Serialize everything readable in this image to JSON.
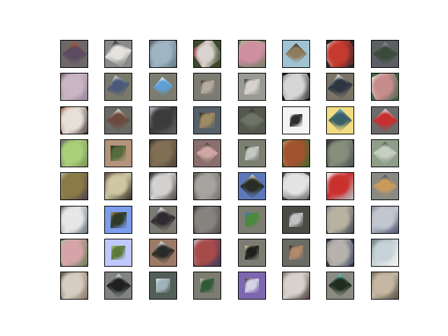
{
  "figure": {
    "rows": 8,
    "cols": 8,
    "tiles": [
      {
        "bg": "#6f6767",
        "fg": "#5a4a62",
        "accent": "#b3542a",
        "rot": 45,
        "scale": 0.62
      },
      {
        "bg": "#8a8a8a",
        "fg": "#e4e2dd",
        "accent": "#2a2f33",
        "rot": 30,
        "scale": 0.7
      },
      {
        "bg": "#5f6f7c",
        "fg": "#9fb5c4",
        "accent": "#3c4550",
        "rot": -20,
        "scale": 1.1
      },
      {
        "bg": "#3d4a2c",
        "fg": "#d9d3cf",
        "accent": "#8c3a3a",
        "rot": -35,
        "scale": 0.85
      },
      {
        "bg": "#6d7f63",
        "fg": "#d08ea1",
        "accent": "#9bc08b",
        "rot": 20,
        "scale": 1.05
      },
      {
        "bg": "#9fc3d5",
        "fg": "#8f7b5d",
        "accent": "#4b3e2e",
        "rot": 45,
        "scale": 0.55
      },
      {
        "bg": "#2e2a2a",
        "fg": "#c53a2e",
        "accent": "#e0e0e0",
        "rot": -30,
        "scale": 1.05
      },
      {
        "bg": "#5d5e64",
        "fg": "#394a3b",
        "accent": "#8f8a92",
        "rot": 45,
        "scale": 0.62
      },
      {
        "bg": "#8e7c92",
        "fg": "#c9b5c3",
        "accent": "#5a4860",
        "rot": -15,
        "scale": 1.15
      },
      {
        "bg": "#7a7a6b",
        "fg": "#4c5a78",
        "accent": "#c9c9d8",
        "rot": 30,
        "scale": 0.6
      },
      {
        "bg": "#7c7c72",
        "fg": "#5ea0d6",
        "accent": "#e0e6ec",
        "rot": 40,
        "scale": 0.5
      },
      {
        "bg": "#7c7c72",
        "fg": "#b6aaa2",
        "accent": "#3d3430",
        "rot": 0,
        "scale": 0.48
      },
      {
        "bg": "#9a9a95",
        "fg": "#d7d3cb",
        "accent": "#3a3a3a",
        "rot": 0,
        "scale": 0.55
      },
      {
        "bg": "#1c1e1c",
        "fg": "#d6d6d6",
        "accent": "#6f7573",
        "rot": -25,
        "scale": 1.1
      },
      {
        "bg": "#7a7466",
        "fg": "#2c3540",
        "accent": "#e6e2da",
        "rot": 35,
        "scale": 0.65
      },
      {
        "bg": "#44684c",
        "fg": "#c78d8d",
        "accent": "#e7e9e0",
        "rot": -25,
        "scale": 1.0
      },
      {
        "bg": "#3d2b28",
        "fg": "#e7e0d9",
        "accent": "#a7543d",
        "rot": -20,
        "scale": 1.1
      },
      {
        "bg": "#6a6a64",
        "fg": "#6a4a3c",
        "accent": "#e0d8cf",
        "rot": 45,
        "scale": 0.6
      },
      {
        "bg": "#5d6360",
        "fg": "#3c3a3c",
        "accent": "#b7bcc1",
        "rot": 0,
        "scale": 1.0
      },
      {
        "bg": "#56606a",
        "fg": "#9f8a62",
        "accent": "#2c2a28",
        "rot": 0,
        "scale": 0.55
      },
      {
        "bg": "#55584f",
        "fg": "#6d7567",
        "accent": "#3e3430",
        "rot": 45,
        "scale": 0.6
      },
      {
        "bg": "#f4f4f4",
        "fg": "#2d2d2d",
        "accent": "#ffffff",
        "rot": 0,
        "scale": 0.45
      },
      {
        "bg": "#f2dc80",
        "fg": "#3a5e66",
        "accent": "#77aeb6",
        "rot": 45,
        "scale": 0.6
      },
      {
        "bg": "#6b6b6b",
        "fg": "#c72e2e",
        "accent": "#d6d6d6",
        "rot": 45,
        "scale": 0.62
      },
      {
        "bg": "#778a55",
        "fg": "#a9cf79",
        "accent": "#5e4c6e",
        "rot": -20,
        "scale": 1.1
      },
      {
        "bg": "#b4937b",
        "fg": "#566c3c",
        "accent": "#2c3224",
        "rot": 0,
        "scale": 0.55
      },
      {
        "bg": "#4a3f32",
        "fg": "#806e55",
        "accent": "#2e2a24",
        "rot": -15,
        "scale": 1.1
      },
      {
        "bg": "#8a6f6d",
        "fg": "#cfa8a4",
        "accent": "#4a3a38",
        "rot": 45,
        "scale": 0.55
      },
      {
        "bg": "#7b8073",
        "fg": "#c4c8c1",
        "accent": "#2e2f2c",
        "rot": 0,
        "scale": 0.5
      },
      {
        "bg": "#3e6a2e",
        "fg": "#a0532e",
        "accent": "#d3a06b",
        "rot": -25,
        "scale": 1.1
      },
      {
        "bg": "#445257",
        "fg": "#868d7b",
        "accent": "#1f2624",
        "rot": -15,
        "scale": 1.05
      },
      {
        "bg": "#8e9e88",
        "fg": "#c6cfc4",
        "accent": "#556055",
        "rot": 45,
        "scale": 0.6
      },
      {
        "bg": "#4a3d4e",
        "fg": "#8a7a48",
        "accent": "#bfb9b0",
        "rot": -10,
        "scale": 1.15
      },
      {
        "bg": "#2f2a22",
        "fg": "#cfc7a3",
        "accent": "#5c5238",
        "rot": 0,
        "scale": 1.0
      },
      {
        "bg": "#3c3a38",
        "fg": "#d4d2d0",
        "accent": "#1e1c1b",
        "rot": -10,
        "scale": 1.05
      },
      {
        "bg": "#6e6863",
        "fg": "#a7a39e",
        "accent": "#2e2a28",
        "rot": -30,
        "scale": 1.1
      },
      {
        "bg": "#5c78b8",
        "fg": "#2a2b24",
        "accent": "#d6d0c2",
        "rot": 45,
        "scale": 0.62
      },
      {
        "bg": "#545454",
        "fg": "#e4e4e4",
        "accent": "#9a9a9a",
        "rot": 30,
        "scale": 1.1
      },
      {
        "bg": "#b5c6cf",
        "fg": "#c9302e",
        "accent": "#ffffff",
        "rot": 0,
        "scale": 1.0
      },
      {
        "bg": "#8a8a84",
        "fg": "#c89b5c",
        "accent": "#3f5d7a",
        "rot": 45,
        "scale": 0.6
      },
      {
        "bg": "#4f5d6a",
        "fg": "#e7e7e7",
        "accent": "#5c4a3c",
        "rot": -20,
        "scale": 1.15
      },
      {
        "bg": "#7b9ef0",
        "fg": "#2f3a26",
        "accent": "#a58a52",
        "rot": 0,
        "scale": 0.58
      },
      {
        "bg": "#7a7a72",
        "fg": "#2e2a30",
        "accent": "#e7e7e7",
        "rot": 35,
        "scale": 0.65
      },
      {
        "bg": "#4a4644",
        "fg": "#88837f",
        "accent": "#2c2a28",
        "rot": -25,
        "scale": 1.15
      },
      {
        "bg": "#7c7c72",
        "fg": "#4a8a3a",
        "accent": "#3a78c8",
        "rot": 0,
        "scale": 0.5
      },
      {
        "bg": "#4c4c46",
        "fg": "#c3c3c3",
        "accent": "#2c2c2c",
        "rot": 0,
        "scale": 0.5
      },
      {
        "bg": "#2f3e4e",
        "fg": "#b8b2a0",
        "accent": "#7b8a96",
        "rot": -15,
        "scale": 1.1
      },
      {
        "bg": "#3f4963",
        "fg": "#c1c6cf",
        "accent": "#828996",
        "rot": 10,
        "scale": 1.1
      },
      {
        "bg": "#567a4a",
        "fg": "#d5a3a8",
        "accent": "#aac79d",
        "rot": -20,
        "scale": 1.1
      },
      {
        "bg": "#c0c8ff",
        "fg": "#5d7a3a",
        "accent": "#a7c27b",
        "rot": 0,
        "scale": 0.5
      },
      {
        "bg": "#9d7a66",
        "fg": "#2a2a28",
        "accent": "#e6e6e6",
        "rot": 35,
        "scale": 0.6
      },
      {
        "bg": "#2c3b5e",
        "fg": "#a74a4a",
        "accent": "#c8d2e2",
        "rot": -15,
        "scale": 1.1
      },
      {
        "bg": "#7c7c72",
        "fg": "#1f1f1c",
        "accent": "#ddd3a5",
        "rot": 0,
        "scale": 0.5
      },
      {
        "bg": "#6b6b66",
        "fg": "#b08a6a",
        "accent": "#2c2a28",
        "rot": 0,
        "scale": 0.5
      },
      {
        "bg": "#2a3a56",
        "fg": "#b7b2ae",
        "accent": "#6c6a68",
        "rot": -30,
        "scale": 1.1
      },
      {
        "bg": "#f4f6f4",
        "fg": "#c7d2d6",
        "accent": "#6d7c82",
        "rot": 0,
        "scale": 1.0
      },
      {
        "bg": "#7c6a55",
        "fg": "#d6ccc1",
        "accent": "#3b342c",
        "rot": -20,
        "scale": 1.1
      },
      {
        "bg": "#7f8480",
        "fg": "#1e1f1e",
        "accent": "#e2e2e2",
        "rot": 45,
        "scale": 0.62
      },
      {
        "bg": "#525f58",
        "fg": "#9fb3b8",
        "accent": "#d9e2e6",
        "rot": 0,
        "scale": 0.5
      },
      {
        "bg": "#7c7c72",
        "fg": "#2f5a36",
        "accent": "#c8c2b8",
        "rot": 0,
        "scale": 0.5
      },
      {
        "bg": "#7d68b0",
        "fg": "#d5d2e6",
        "accent": "#4b3e2a",
        "rot": 0,
        "scale": 0.5
      },
      {
        "bg": "#3a2a24",
        "fg": "#d7d2cc",
        "accent": "#7b6a5d",
        "rot": -10,
        "scale": 1.1
      },
      {
        "bg": "#8a8c82",
        "fg": "#1f2d1c",
        "accent": "#6ac8c1",
        "rot": 45,
        "scale": 0.6
      },
      {
        "bg": "#4e4a42",
        "fg": "#c6b7a2",
        "accent": "#7a6f60",
        "rot": 0,
        "scale": 1.05
      }
    ]
  }
}
